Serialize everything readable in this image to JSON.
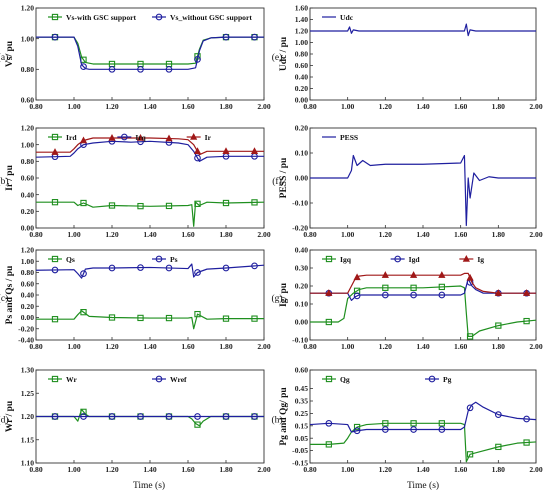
{
  "figure": {
    "xlabel": "Time (s)",
    "x_ticks": [
      "0.80",
      "1.00",
      "1.20",
      "1.40",
      "1.60",
      "1.80",
      "2.00"
    ]
  },
  "chart_data": [
    {
      "type": "line",
      "panel": "(a)",
      "ylabel": "Vs/ pu",
      "xlim": [
        0.8,
        2.0
      ],
      "ylim": [
        0.6,
        1.2
      ],
      "y_ticks": [
        "0.60",
        "0.80",
        "1.00",
        "1.20"
      ],
      "series": [
        {
          "name": "Vs-with GSC support",
          "color": "#1f8f1f",
          "marker": "square",
          "x": [
            0.8,
            1.0,
            1.02,
            1.04,
            1.06,
            1.08,
            1.1,
            1.2,
            1.4,
            1.6,
            1.64,
            1.66,
            1.68,
            1.72,
            1.8,
            2.0
          ],
          "y": [
            1.01,
            1.01,
            0.97,
            0.88,
            0.845,
            0.84,
            0.835,
            0.835,
            0.835,
            0.835,
            0.84,
            0.93,
            0.99,
            1.005,
            1.01,
            1.01
          ]
        },
        {
          "name": "Vs_without GSC support",
          "color": "#1f1f9f",
          "marker": "circle",
          "x": [
            0.8,
            1.0,
            1.02,
            1.04,
            1.06,
            1.08,
            1.1,
            1.2,
            1.4,
            1.6,
            1.64,
            1.66,
            1.68,
            1.72,
            1.8,
            2.0
          ],
          "y": [
            1.01,
            1.01,
            0.95,
            0.83,
            0.805,
            0.8,
            0.8,
            0.8,
            0.8,
            0.8,
            0.81,
            0.92,
            0.985,
            1.005,
            1.01,
            1.01
          ]
        }
      ]
    },
    {
      "type": "line",
      "panel": "(e)",
      "ylabel": "Udc / pu",
      "xlim": [
        0.8,
        2.0
      ],
      "ylim": [
        0.0,
        1.6
      ],
      "y_ticks": [
        "0.00",
        "0.20",
        "0.40",
        "0.60",
        "0.80",
        "1.00",
        "1.20",
        "1.40",
        "1.60"
      ],
      "series": [
        {
          "name": "Udc",
          "color": "#1f1f9f",
          "marker": "none",
          "x": [
            0.8,
            1.0,
            1.01,
            1.02,
            1.03,
            1.06,
            1.2,
            1.4,
            1.62,
            1.63,
            1.64,
            1.65,
            1.68,
            1.8,
            2.0
          ],
          "y": [
            1.2,
            1.2,
            1.27,
            1.16,
            1.22,
            1.2,
            1.2,
            1.2,
            1.2,
            1.32,
            1.12,
            1.22,
            1.2,
            1.2,
            1.2
          ]
        }
      ]
    },
    {
      "type": "line",
      "panel": "(b)",
      "ylabel": "Ir / pu",
      "xlim": [
        0.8,
        2.0
      ],
      "ylim": [
        0.0,
        1.2
      ],
      "y_ticks": [
        "0.00",
        "0.20",
        "0.40",
        "0.60",
        "0.80",
        "1.00",
        "1.20"
      ],
      "series": [
        {
          "name": "Ird",
          "color": "#1f8f1f",
          "marker": "square",
          "x": [
            0.8,
            1.0,
            1.02,
            1.05,
            1.1,
            1.2,
            1.4,
            1.6,
            1.62,
            1.63,
            1.64,
            1.66,
            1.7,
            1.8,
            2.0
          ],
          "y": [
            0.31,
            0.31,
            0.27,
            0.3,
            0.25,
            0.27,
            0.26,
            0.27,
            0.28,
            0.02,
            0.31,
            0.27,
            0.31,
            0.3,
            0.31
          ]
        },
        {
          "name": "Irq",
          "color": "#1f1f9f",
          "marker": "circle",
          "x": [
            0.8,
            0.98,
            1.0,
            1.02,
            1.05,
            1.1,
            1.2,
            1.3,
            1.4,
            1.55,
            1.6,
            1.63,
            1.66,
            1.7,
            1.8,
            2.0
          ],
          "y": [
            0.85,
            0.86,
            0.9,
            0.95,
            1.0,
            1.02,
            1.04,
            1.03,
            1.04,
            1.02,
            1.0,
            0.92,
            0.8,
            0.85,
            0.86,
            0.86
          ]
        },
        {
          "name": "Ir",
          "color": "#a01818",
          "marker": "triangle",
          "x": [
            0.8,
            0.98,
            1.0,
            1.02,
            1.05,
            1.1,
            1.2,
            1.3,
            1.4,
            1.55,
            1.6,
            1.63,
            1.66,
            1.7,
            1.8,
            2.0
          ],
          "y": [
            0.91,
            0.91,
            0.95,
            1.0,
            1.05,
            1.08,
            1.08,
            1.08,
            1.08,
            1.07,
            1.06,
            1.0,
            0.88,
            0.92,
            0.92,
            0.92
          ]
        }
      ]
    },
    {
      "type": "line",
      "panel": "(f)",
      "ylabel": "PESS / pu",
      "xlim": [
        0.8,
        2.0
      ],
      "ylim": [
        -0.2,
        0.2
      ],
      "y_ticks": [
        "-0.20",
        "-0.10",
        "0.00",
        "0.10",
        "0.20"
      ],
      "series": [
        {
          "name": "PESS",
          "color": "#1f1f9f",
          "marker": "none",
          "x": [
            0.8,
            1.0,
            1.02,
            1.03,
            1.05,
            1.08,
            1.12,
            1.2,
            1.4,
            1.6,
            1.62,
            1.63,
            1.64,
            1.65,
            1.67,
            1.7,
            1.75,
            1.8,
            2.0
          ],
          "y": [
            0.0,
            0.0,
            0.03,
            0.09,
            0.05,
            0.07,
            0.05,
            0.055,
            0.055,
            0.06,
            0.09,
            -0.19,
            0.0,
            -0.08,
            0.02,
            -0.01,
            0.005,
            0.0,
            0.0
          ]
        }
      ]
    },
    {
      "type": "line",
      "panel": "(c)",
      "ylabel": "Ps and Qs / pu",
      "xlim": [
        0.8,
        2.0
      ],
      "ylim": [
        -0.4,
        1.2
      ],
      "y_ticks": [
        "-0.40",
        "-0.20",
        "0.00",
        "0.20",
        "0.40",
        "0.60",
        "0.80",
        "1.00",
        "1.20"
      ],
      "series": [
        {
          "name": "Qs",
          "color": "#1f8f1f",
          "marker": "square",
          "x": [
            0.8,
            1.0,
            1.02,
            1.04,
            1.08,
            1.2,
            1.4,
            1.6,
            1.62,
            1.63,
            1.65,
            1.7,
            1.8,
            2.0
          ],
          "y": [
            -0.03,
            -0.03,
            0.05,
            0.12,
            0.02,
            0.0,
            -0.01,
            -0.01,
            0.0,
            -0.2,
            0.06,
            -0.03,
            -0.02,
            -0.02
          ]
        },
        {
          "name": "Ps",
          "color": "#1f1f9f",
          "marker": "circle",
          "x": [
            0.8,
            1.0,
            1.02,
            1.04,
            1.06,
            1.1,
            1.2,
            1.4,
            1.6,
            1.62,
            1.63,
            1.65,
            1.7,
            1.8,
            2.0
          ],
          "y": [
            0.84,
            0.85,
            0.78,
            0.7,
            0.86,
            0.88,
            0.88,
            0.89,
            0.87,
            0.95,
            0.72,
            0.8,
            0.86,
            0.88,
            0.93
          ]
        }
      ]
    },
    {
      "type": "line",
      "panel": "(g)",
      "ylabel": "Ig/ pu",
      "xlim": [
        0.8,
        2.0
      ],
      "ylim": [
        -0.1,
        0.4
      ],
      "y_ticks": [
        "-0.10",
        "0.00",
        "0.10",
        "0.20",
        "0.30",
        "0.40"
      ],
      "series": [
        {
          "name": "Igq",
          "color": "#1f8f1f",
          "marker": "square",
          "x": [
            0.8,
            0.9,
            0.95,
            0.98,
            1.0,
            1.03,
            1.06,
            1.1,
            1.2,
            1.4,
            1.6,
            1.62,
            1.63,
            1.64,
            1.66,
            1.7,
            1.8,
            1.9,
            2.0
          ],
          "y": [
            0.0,
            0.0,
            0.0,
            0.02,
            0.13,
            0.16,
            0.18,
            0.19,
            0.19,
            0.19,
            0.2,
            0.19,
            0.05,
            -0.08,
            -0.08,
            -0.05,
            -0.02,
            0.0,
            0.01
          ]
        },
        {
          "name": "Igd",
          "color": "#1f1f9f",
          "marker": "circle",
          "x": [
            0.8,
            1.0,
            1.02,
            1.04,
            1.06,
            1.1,
            1.2,
            1.4,
            1.6,
            1.62,
            1.64,
            1.66,
            1.68,
            1.72,
            1.8,
            2.0
          ],
          "y": [
            0.16,
            0.16,
            0.12,
            0.14,
            0.15,
            0.15,
            0.15,
            0.15,
            0.15,
            0.16,
            0.24,
            0.2,
            0.18,
            0.16,
            0.16,
            0.16
          ]
        },
        {
          "name": "Ig",
          "color": "#a01818",
          "marker": "triangle",
          "x": [
            0.8,
            1.0,
            1.02,
            1.04,
            1.06,
            1.1,
            1.2,
            1.4,
            1.6,
            1.62,
            1.64,
            1.66,
            1.68,
            1.72,
            1.8,
            2.0
          ],
          "y": [
            0.16,
            0.16,
            0.2,
            0.24,
            0.255,
            0.26,
            0.26,
            0.26,
            0.26,
            0.27,
            0.27,
            0.22,
            0.19,
            0.17,
            0.16,
            0.16
          ]
        }
      ]
    },
    {
      "type": "line",
      "panel": "(d)",
      "ylabel": "Wr / pu",
      "xlim": [
        0.8,
        2.0
      ],
      "ylim": [
        1.1,
        1.3
      ],
      "y_ticks": [
        "1.10",
        "1.15",
        "1.20",
        "1.25",
        "1.30"
      ],
      "series": [
        {
          "name": "Wr",
          "color": "#1f8f1f",
          "marker": "square",
          "x": [
            0.8,
            1.0,
            1.02,
            1.04,
            1.06,
            1.08,
            1.2,
            1.4,
            1.6,
            1.62,
            1.64,
            1.66,
            1.68,
            1.72,
            1.8,
            2.0
          ],
          "y": [
            1.2,
            1.2,
            1.19,
            1.215,
            1.205,
            1.2,
            1.2,
            1.2,
            1.2,
            1.195,
            1.185,
            1.18,
            1.19,
            1.2,
            1.2,
            1.2
          ]
        },
        {
          "name": "Wref",
          "color": "#1f1f9f",
          "marker": "circle",
          "x": [
            0.8,
            2.0
          ],
          "y": [
            1.2,
            1.2
          ]
        }
      ]
    },
    {
      "type": "line",
      "panel": "(h)",
      "ylabel": "Pg and Qg/ pu",
      "xlim": [
        0.8,
        2.0
      ],
      "ylim": [
        -0.15,
        0.6
      ],
      "y_ticks": [
        "-0.15",
        "-0.05",
        "0.05",
        "0.15",
        "0.25",
        "0.35",
        "0.45",
        "0.60"
      ],
      "series": [
        {
          "name": "Qg",
          "color": "#1f8f1f",
          "marker": "square",
          "x": [
            0.8,
            0.9,
            0.98,
            1.0,
            1.02,
            1.05,
            1.1,
            1.2,
            1.4,
            1.6,
            1.62,
            1.63,
            1.65,
            1.7,
            1.8,
            1.9,
            2.0
          ],
          "y": [
            0.0,
            0.0,
            0.01,
            0.05,
            0.1,
            0.14,
            0.16,
            0.17,
            0.17,
            0.17,
            0.16,
            -0.14,
            -0.08,
            -0.06,
            -0.02,
            0.01,
            0.02
          ]
        },
        {
          "name": "Pg",
          "color": "#1f1f9f",
          "marker": "circle",
          "x": [
            0.8,
            0.9,
            1.0,
            1.02,
            1.05,
            1.1,
            1.2,
            1.4,
            1.6,
            1.62,
            1.64,
            1.66,
            1.68,
            1.72,
            1.8,
            1.9,
            2.0
          ],
          "y": [
            0.16,
            0.17,
            0.16,
            0.1,
            0.11,
            0.12,
            0.12,
            0.12,
            0.12,
            0.14,
            0.27,
            0.32,
            0.34,
            0.3,
            0.24,
            0.21,
            0.2
          ]
        }
      ]
    }
  ]
}
